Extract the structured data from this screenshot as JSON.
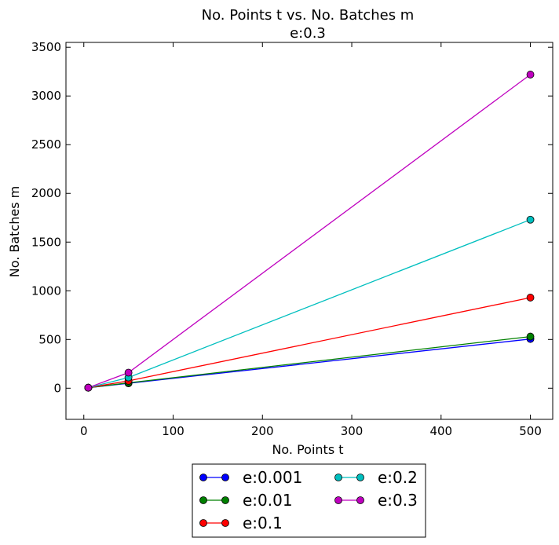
{
  "chart_data": {
    "type": "line",
    "title": "No. Points t vs. No. Batches m",
    "subtitle": "e:0.3",
    "xlabel": "No. Points t",
    "ylabel": "No. Batches m",
    "xlim": [
      -20,
      525
    ],
    "ylim": [
      -320,
      3550
    ],
    "xticks": [
      0,
      100,
      200,
      300,
      400,
      500
    ],
    "yticks": [
      0,
      500,
      1000,
      1500,
      2000,
      2500,
      3000,
      3500
    ],
    "x": [
      5,
      50,
      500
    ],
    "grid": false,
    "legend_position": "below plot",
    "legend_columns": 2,
    "series": [
      {
        "name": "e:0.001",
        "color": "#0000ff",
        "values": [
          5,
          50,
          505
        ]
      },
      {
        "name": "e:0.01",
        "color": "#008000",
        "values": [
          5,
          55,
          530
        ]
      },
      {
        "name": "e:0.1",
        "color": "#ff0000",
        "values": [
          5,
          75,
          930
        ]
      },
      {
        "name": "e:0.2",
        "color": "#00bfbf",
        "values": [
          5,
          110,
          1730
        ]
      },
      {
        "name": "e:0.3",
        "color": "#bf00bf",
        "values": [
          5,
          160,
          3220
        ]
      }
    ]
  }
}
